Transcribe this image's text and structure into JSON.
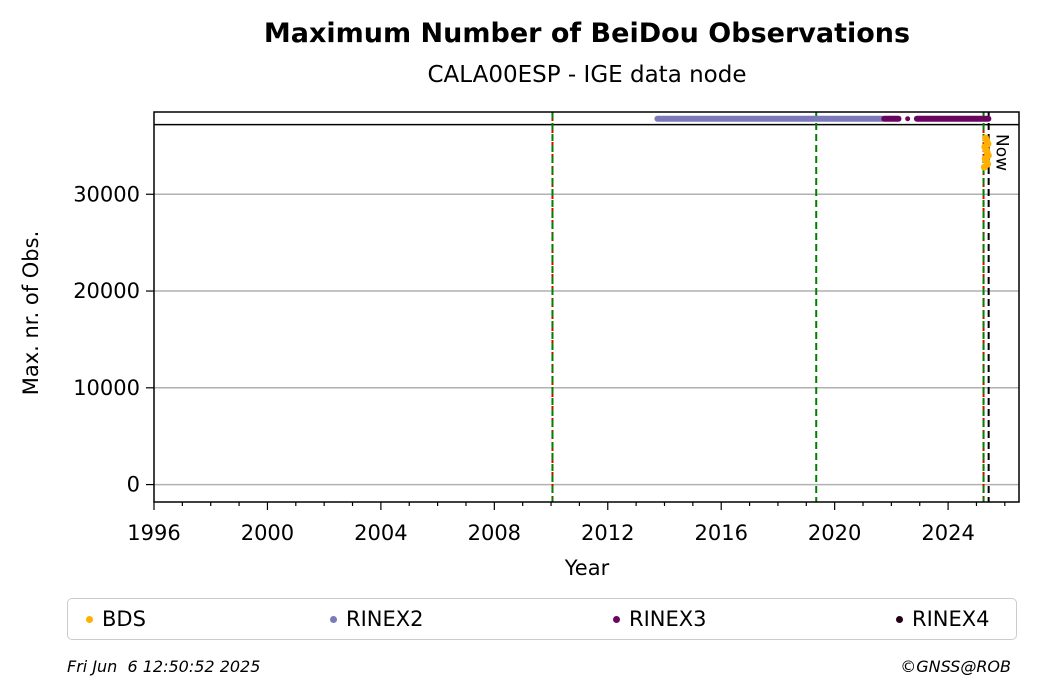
{
  "chart_data": {
    "type": "scatter",
    "title": "Maximum Number of BeiDou Observations",
    "subtitle": "CALA00ESP - IGE data node",
    "xlabel": "Year",
    "ylabel": "Max. nr. of Obs.",
    "xlim": [
      1996,
      2026.5
    ],
    "ylim": [
      -1800,
      38500
    ],
    "x_ticks": [
      1996,
      2000,
      2004,
      2008,
      2012,
      2016,
      2020,
      2024
    ],
    "y_ticks": [
      0,
      10000,
      20000,
      30000
    ],
    "y_tick_labels": [
      "0",
      "10000",
      "20000",
      "30000"
    ],
    "grid": "horizontal",
    "upper_reference_line": 37200,
    "vertical_lines": [
      {
        "x": 2010.05,
        "color": "#e00000",
        "style": "dashed"
      },
      {
        "x": 2010.05,
        "color": "#008000",
        "style": "dashed"
      },
      {
        "x": 2019.35,
        "color": "#008000",
        "style": "dashed"
      },
      {
        "x": 2025.25,
        "color": "#e00000",
        "style": "dashed"
      },
      {
        "x": 2025.25,
        "color": "#008000",
        "style": "dashed"
      },
      {
        "x": 2025.43,
        "color": "#000000",
        "style": "dashed",
        "label": "Now"
      }
    ],
    "series": [
      {
        "name": "BDS",
        "color": "#ffb000",
        "segments": [
          [
            2025.28,
            2025.42
          ]
        ],
        "y_range": [
          32800,
          35800
        ]
      },
      {
        "name": "RINEX2",
        "color": "#7b79b9",
        "segments": [
          [
            2013.75,
            2021.7
          ]
        ],
        "y": 37800
      },
      {
        "name": "RINEX3",
        "color": "#6a0560",
        "segments": [
          [
            2021.75,
            2022.25
          ],
          [
            2022.55,
            2022.6
          ],
          [
            2022.9,
            2025.42
          ]
        ],
        "y": 37800
      },
      {
        "name": "RINEX4",
        "color": "#220018",
        "segments": [],
        "y": 37800
      }
    ]
  },
  "legend": [
    {
      "name": "BDS",
      "color": "#ffb000"
    },
    {
      "name": "RINEX2",
      "color": "#7b79b9"
    },
    {
      "name": "RINEX3",
      "color": "#6a0560"
    },
    {
      "name": "RINEX4",
      "color": "#220018"
    }
  ],
  "footer": {
    "timestamp": "Fri Jun  6 12:50:52 2025",
    "credit": "©GNSS@ROB"
  }
}
